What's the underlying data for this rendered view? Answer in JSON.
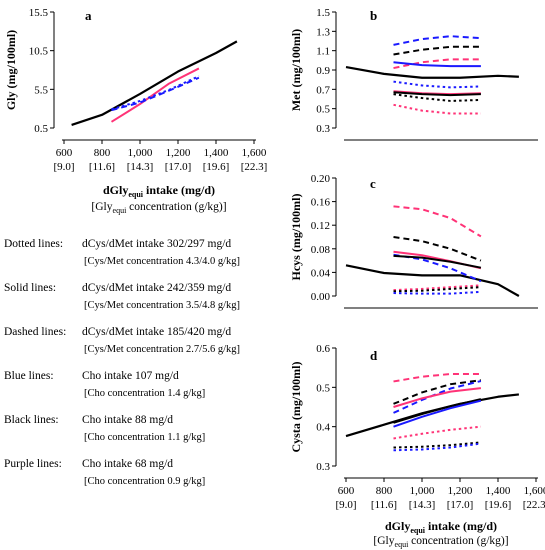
{
  "chart_data": [
    {
      "panel": "a",
      "type": "line",
      "ylabel": "Gly (mg/100ml)",
      "x_tick_labels": [
        "600",
        "800",
        "1,000",
        "1,200",
        "1,400",
        "1,600"
      ],
      "x_tick_sublabels": [
        "[9.0]",
        "[11.6]",
        "[14.3]",
        "[17.0]",
        "[19.6]",
        "[22.3]"
      ],
      "xlim": [
        600,
        1600
      ],
      "ylim": [
        0.5,
        15.5
      ],
      "y_tick_labels": [
        "0.5",
        "5.5",
        "10.5",
        "15.5"
      ],
      "series": [
        {
          "color": "#000000",
          "dash": "solid",
          "x": [
            640,
            800,
            1000,
            1200,
            1400,
            1510
          ],
          "y": [
            0.9,
            2.2,
            4.9,
            7.8,
            10.2,
            11.7
          ]
        },
        {
          "color": "#ff3377",
          "dash": "solid",
          "x": [
            850,
            1000,
            1150,
            1310
          ],
          "y": [
            1.3,
            3.6,
            6.2,
            8.2
          ]
        },
        {
          "color": "#1a1aff",
          "dash": "dashed",
          "x": [
            850,
            1000,
            1150,
            1310
          ],
          "y": [
            2.8,
            3.8,
            5.3,
            7.0
          ]
        },
        {
          "color": "#1a1aff",
          "dash": "dotted",
          "x": [
            850,
            1000,
            1150,
            1310
          ],
          "y": [
            2.9,
            4.0,
            5.4,
            7.2
          ]
        }
      ]
    },
    {
      "panel": "b",
      "type": "line",
      "ylabel": "Met (mg/100ml)",
      "xlim": [
        600,
        1600
      ],
      "ylim": [
        0.3,
        1.5
      ],
      "y_tick_labels": [
        "0.3",
        "0.5",
        "0.7",
        "0.9",
        "1.1",
        "1.3",
        "1.5"
      ],
      "series": [
        {
          "color": "#000000",
          "dash": "solid",
          "x": [
            600,
            800,
            1000,
            1200,
            1400,
            1510
          ],
          "y": [
            0.93,
            0.86,
            0.82,
            0.82,
            0.84,
            0.83
          ]
        },
        {
          "color": "#1a1aff",
          "dash": "dashed",
          "x": [
            850,
            1000,
            1150,
            1310
          ],
          "y": [
            1.16,
            1.22,
            1.25,
            1.23
          ]
        },
        {
          "color": "#000000",
          "dash": "dashed",
          "x": [
            850,
            1000,
            1150,
            1310
          ],
          "y": [
            1.06,
            1.11,
            1.14,
            1.14
          ]
        },
        {
          "color": "#ff3377",
          "dash": "dashed",
          "x": [
            850,
            1000,
            1150,
            1310
          ],
          "y": [
            0.92,
            0.98,
            1.01,
            1.01
          ]
        },
        {
          "color": "#1a1aff",
          "dash": "solid",
          "x": [
            850,
            1000,
            1150,
            1310
          ],
          "y": [
            0.98,
            0.95,
            0.94,
            0.94
          ]
        },
        {
          "color": "#1a1aff",
          "dash": "dotted",
          "x": [
            850,
            1000,
            1150,
            1310
          ],
          "y": [
            0.78,
            0.74,
            0.72,
            0.73
          ]
        },
        {
          "color": "#ff3377",
          "dash": "solid",
          "x": [
            850,
            1000,
            1150,
            1310
          ],
          "y": [
            0.68,
            0.66,
            0.65,
            0.66
          ]
        },
        {
          "color": "#000000",
          "dash": "solid",
          "x": [
            850,
            1000,
            1150,
            1310
          ],
          "y": [
            0.67,
            0.65,
            0.64,
            0.65
          ]
        },
        {
          "color": "#000000",
          "dash": "dotted",
          "x": [
            850,
            1000,
            1150,
            1310
          ],
          "y": [
            0.65,
            0.61,
            0.58,
            0.59
          ]
        },
        {
          "color": "#ff3377",
          "dash": "dotted",
          "x": [
            850,
            1000,
            1150,
            1310
          ],
          "y": [
            0.54,
            0.48,
            0.45,
            0.45
          ]
        }
      ]
    },
    {
      "panel": "c",
      "type": "line",
      "ylabel": "Hcys (mg/100ml)",
      "xlim": [
        600,
        1600
      ],
      "ylim": [
        0,
        0.2
      ],
      "y_tick_labels": [
        "0.00",
        "0.04",
        "0.08",
        "0.12",
        "0.16",
        "0.20"
      ],
      "series": [
        {
          "color": "#000000",
          "dash": "solid",
          "x": [
            600,
            800,
            1000,
            1200,
            1400,
            1510
          ],
          "y": [
            0.052,
            0.039,
            0.035,
            0.035,
            0.02,
            0.0
          ]
        },
        {
          "color": "#ff3377",
          "dash": "dashed",
          "x": [
            850,
            1000,
            1150,
            1310
          ],
          "y": [
            0.152,
            0.147,
            0.132,
            0.101
          ]
        },
        {
          "color": "#000000",
          "dash": "dashed",
          "x": [
            850,
            1000,
            1150,
            1310
          ],
          "y": [
            0.1,
            0.093,
            0.08,
            0.06
          ]
        },
        {
          "color": "#ff3377",
          "dash": "solid",
          "x": [
            850,
            1000,
            1150,
            1310
          ],
          "y": [
            0.075,
            0.069,
            0.059,
            0.047
          ]
        },
        {
          "color": "#1a1aff",
          "dash": "dashed",
          "x": [
            850,
            1000,
            1150,
            1310
          ],
          "y": [
            0.07,
            0.062,
            0.047,
            0.025
          ]
        },
        {
          "color": "#000000",
          "dash": "solid",
          "x": [
            850,
            1000,
            1150,
            1310
          ],
          "y": [
            0.068,
            0.065,
            0.058,
            0.048
          ]
        },
        {
          "color": "#ff3377",
          "dash": "dotted",
          "x": [
            850,
            1000,
            1150,
            1310
          ],
          "y": [
            0.01,
            0.012,
            0.015,
            0.018
          ]
        },
        {
          "color": "#000000",
          "dash": "dotted",
          "x": [
            850,
            1000,
            1150,
            1310
          ],
          "y": [
            0.008,
            0.009,
            0.012,
            0.015
          ]
        },
        {
          "color": "#1a1aff",
          "dash": "dotted",
          "x": [
            850,
            1000,
            1150,
            1310
          ],
          "y": [
            0.005,
            0.004,
            0.004,
            0.007
          ]
        }
      ]
    },
    {
      "panel": "d",
      "type": "line",
      "ylabel": "Cysta (mg/100ml)",
      "xlabel": "dGly",
      "xlabel_sub": "equi",
      "xlabel_rest": " intake (mg/d)",
      "x_caption_pre": "[Gly",
      "x_caption_sub": "equi",
      "x_caption_post": " concentration (g/kg)]",
      "x_tick_labels": [
        "600",
        "800",
        "1,000",
        "1,200",
        "1,400",
        "1,600"
      ],
      "x_tick_sublabels": [
        "[9.0]",
        "[11.6]",
        "[14.3]",
        "[17.0]",
        "[19.6]",
        "[22.3]"
      ],
      "xlim": [
        600,
        1600
      ],
      "ylim": [
        0.3,
        0.6
      ],
      "y_tick_labels": [
        "0.3",
        "0.4",
        "0.5",
        "0.6"
      ],
      "series": [
        {
          "color": "#000000",
          "dash": "solid",
          "x": [
            600,
            800,
            1000,
            1200,
            1400,
            1510
          ],
          "y": [
            0.376,
            0.405,
            0.434,
            0.458,
            0.476,
            0.482
          ]
        },
        {
          "color": "#ff3377",
          "dash": "dashed",
          "x": [
            850,
            1000,
            1150,
            1310
          ],
          "y": [
            0.515,
            0.527,
            0.534,
            0.534
          ]
        },
        {
          "color": "#000000",
          "dash": "dashed",
          "x": [
            850,
            1000,
            1150,
            1310
          ],
          "y": [
            0.458,
            0.487,
            0.508,
            0.518
          ]
        },
        {
          "color": "#1a1aff",
          "dash": "dashed",
          "x": [
            850,
            1000,
            1150,
            1310
          ],
          "y": [
            0.435,
            0.468,
            0.497,
            0.516
          ]
        },
        {
          "color": "#ff3377",
          "dash": "solid",
          "x": [
            850,
            1000,
            1150,
            1310
          ],
          "y": [
            0.45,
            0.472,
            0.489,
            0.498
          ]
        },
        {
          "color": "#000000",
          "dash": "solid",
          "x": [
            850,
            1000,
            1150,
            1310
          ],
          "y": [
            0.41,
            0.432,
            0.452,
            0.47
          ]
        },
        {
          "color": "#1a1aff",
          "dash": "solid",
          "x": [
            850,
            1000,
            1150,
            1310
          ],
          "y": [
            0.4,
            0.425,
            0.447,
            0.466
          ]
        },
        {
          "color": "#ff3377",
          "dash": "dotted",
          "x": [
            850,
            1000,
            1150,
            1310
          ],
          "y": [
            0.37,
            0.382,
            0.392,
            0.4
          ]
        },
        {
          "color": "#000000",
          "dash": "dotted",
          "x": [
            850,
            1000,
            1150,
            1310
          ],
          "y": [
            0.347,
            0.349,
            0.353,
            0.36
          ]
        },
        {
          "color": "#1a1aff",
          "dash": "dotted",
          "x": [
            850,
            1000,
            1150,
            1310
          ],
          "y": [
            0.34,
            0.342,
            0.347,
            0.357
          ]
        }
      ]
    }
  ],
  "panel_a_xlabel": {
    "main": "dGly",
    "sub": "equi",
    "rest": " intake (mg/d)",
    "caption_pre": "[Gly",
    "caption_sub": "equi",
    "caption_post": " concentration (g/kg)]"
  },
  "legend": [
    {
      "name": "Dotted lines:",
      "desc": "dCys/dMet intake 302/297 mg/d",
      "sub": "[Cys/Met concentration 4.3/4.0 g/kg]"
    },
    {
      "name": "Solid lines:",
      "desc": "dCys/dMet intake 242/359 mg/d",
      "sub": "[Cys/Met concentration 3.5/4.8 g/kg]"
    },
    {
      "name": "Dashed lines:",
      "desc": "dCys/dMet intake 185/420 mg/d",
      "sub": "[Cys/Met concentration 2.7/5.6 g/kg]"
    },
    {
      "name": "Blue lines:",
      "desc": "Cho intake 107 mg/d",
      "sub": "[Cho concentration 1.4 g/kg]"
    },
    {
      "name": "Black lines:",
      "desc": "Cho intake 88 mg/d",
      "sub": "[Cho concentration 1.1 g/kg]"
    },
    {
      "name": "Purple lines:",
      "desc": "Cho intake 68  mg/d",
      "sub": "[Cho concentration 0.9 g/kg]"
    }
  ]
}
